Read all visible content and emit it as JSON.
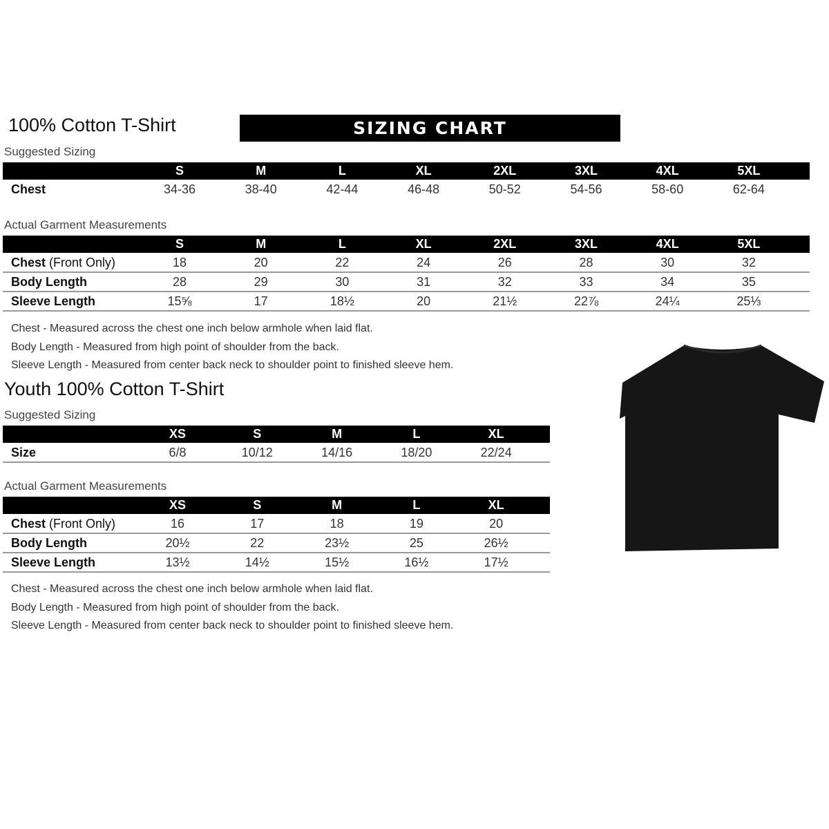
{
  "banner": "SIZING CHART",
  "adult": {
    "title": "100% Cotton T-Shirt",
    "suggested_label": "Suggested Sizing",
    "sizes": [
      "S",
      "M",
      "L",
      "XL",
      "2XL",
      "3XL",
      "4XL",
      "5XL"
    ],
    "suggested_rows": [
      {
        "label": "Chest",
        "values": [
          "34-36",
          "38-40",
          "42-44",
          "46-48",
          "50-52",
          "54-56",
          "58-60",
          "62-64"
        ]
      }
    ],
    "actual_label": "Actual Garment Measurements",
    "actual_rows": [
      {
        "label": "Chest",
        "label_suffix": " (Front Only)",
        "values": [
          "18",
          "20",
          "22",
          "24",
          "26",
          "28",
          "30",
          "32"
        ]
      },
      {
        "label": "Body Length",
        "label_suffix": "",
        "values": [
          "28",
          "29",
          "30",
          "31",
          "32",
          "33",
          "34",
          "35"
        ]
      },
      {
        "label": "Sleeve Length",
        "label_suffix": "",
        "values": [
          "15⅝",
          "17",
          "18½",
          "20",
          "21½",
          "22⅞",
          "24¼",
          "25⅓"
        ]
      }
    ],
    "notes": [
      "Chest - Measured across the chest one inch below armhole when laid flat.",
      "Body Length - Measured from high point of shoulder from the back.",
      "Sleeve Length - Measured from center back neck to shoulder point to finished sleeve hem."
    ]
  },
  "youth": {
    "title": "Youth 100% Cotton T-Shirt",
    "suggested_label": "Suggested Sizing",
    "sizes": [
      "XS",
      "S",
      "M",
      "L",
      "XL"
    ],
    "suggested_rows": [
      {
        "label": "Size",
        "values": [
          "6/8",
          "10/12",
          "14/16",
          "18/20",
          "22/24"
        ]
      }
    ],
    "actual_label": "Actual Garment Measurements",
    "actual_rows": [
      {
        "label": "Chest",
        "label_suffix": " (Front Only)",
        "values": [
          "16",
          "17",
          "18",
          "19",
          "20"
        ]
      },
      {
        "label": "Body Length",
        "label_suffix": "",
        "values": [
          "20½",
          "22",
          "23½",
          "25",
          "26½"
        ]
      },
      {
        "label": "Sleeve Length",
        "label_suffix": "",
        "values": [
          "13½",
          "14½",
          "15½",
          "16½",
          "17½"
        ]
      }
    ],
    "notes": [
      "Chest - Measured across the chest one inch below armhole when laid flat.",
      "Body Length - Measured from high point of shoulder from the back.",
      "Sleeve Length - Measured from center back neck to shoulder point to finished sleeve hem."
    ]
  },
  "image": {
    "icon": "t-shirt-icon",
    "color": "#161616"
  }
}
